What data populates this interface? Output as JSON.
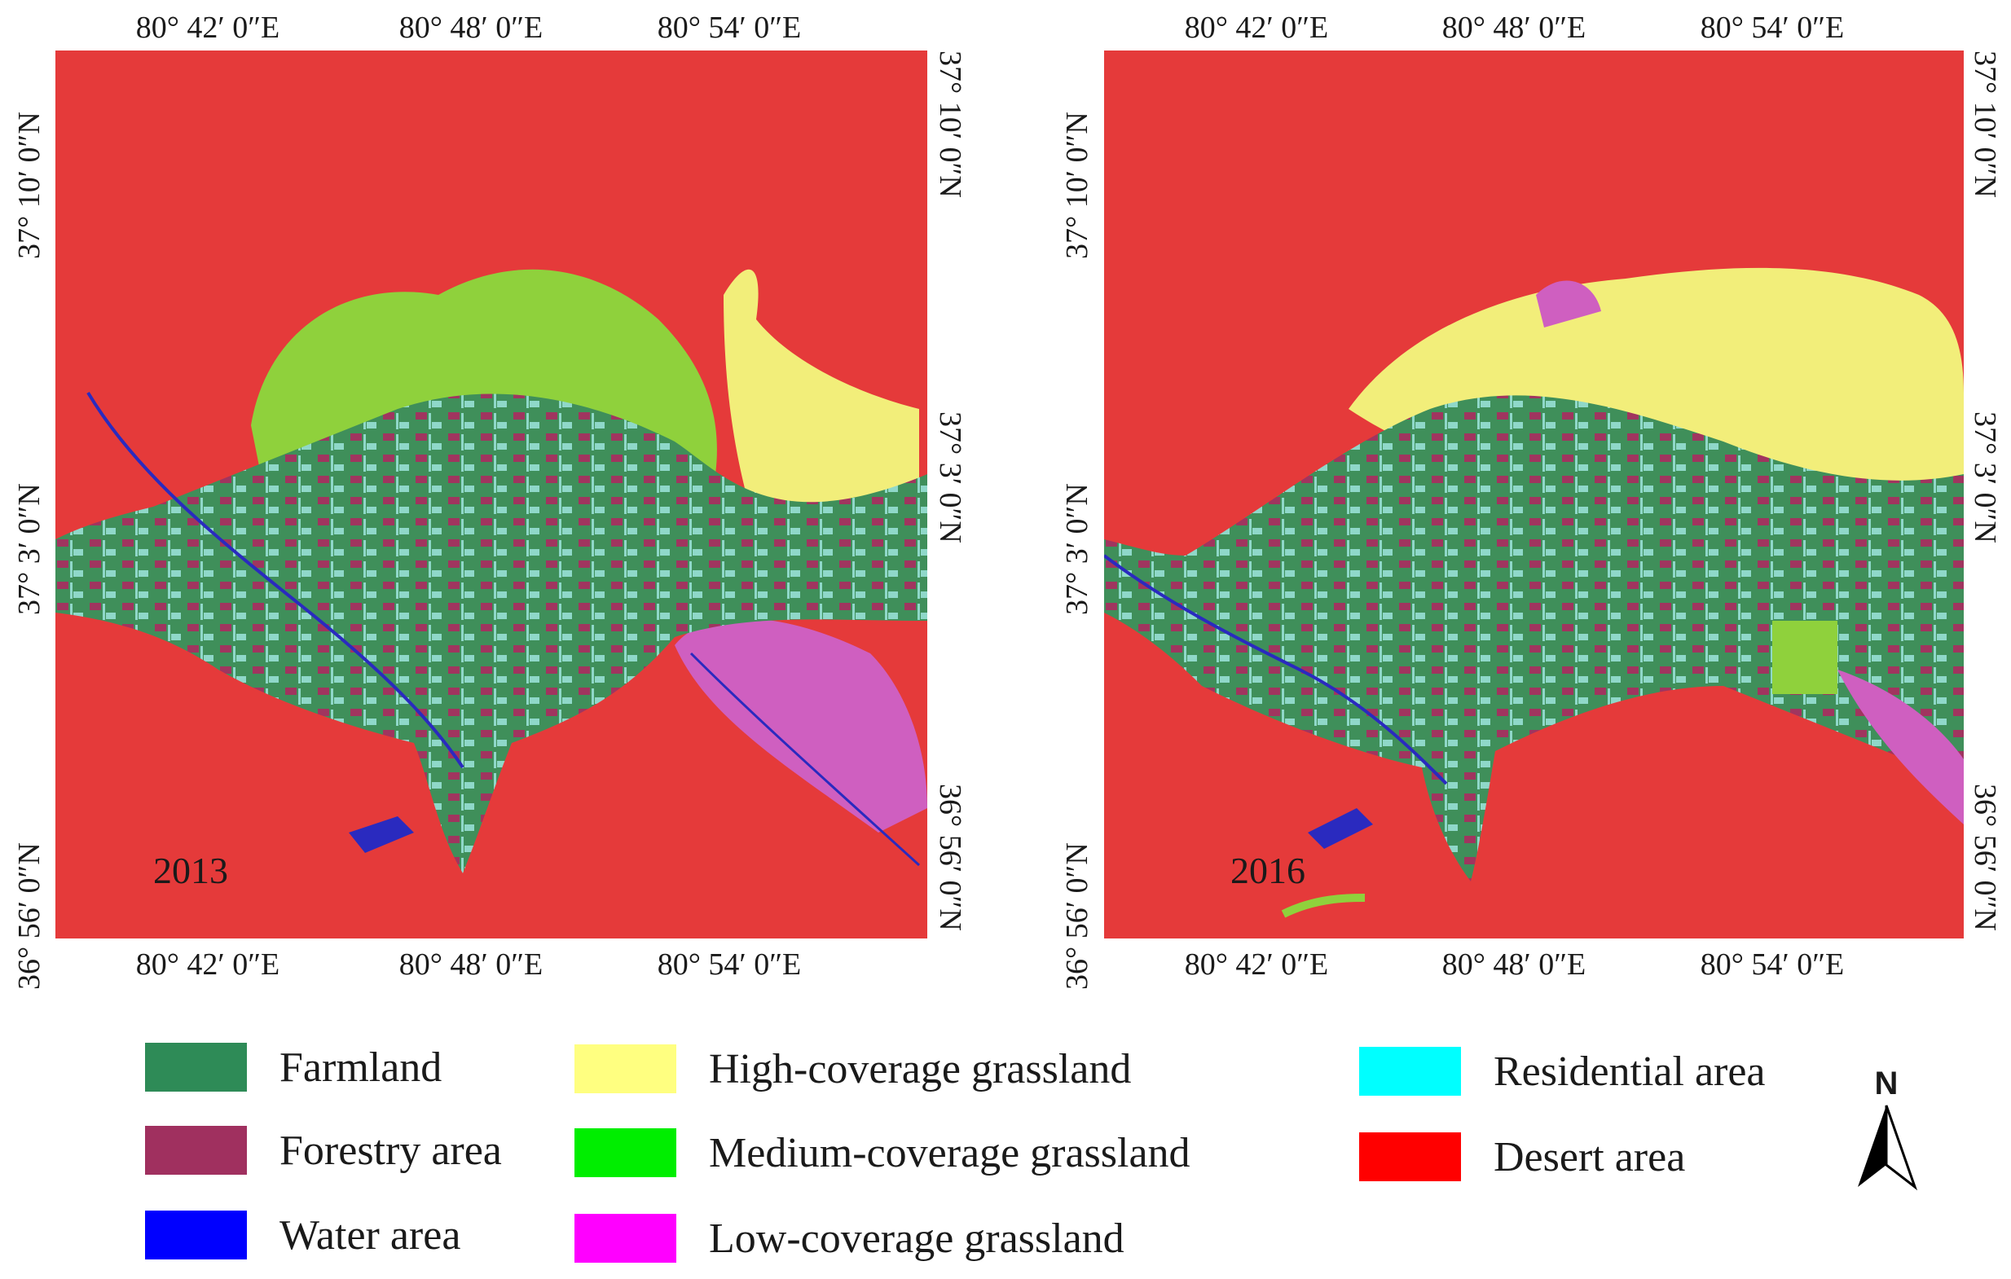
{
  "maps": [
    {
      "year": "2013",
      "lon_ticks": [
        "80°  42′ 0″E",
        "80°  48′ 0″E",
        "80°  54′ 0″E"
      ],
      "lat_ticks": [
        "37°  10′ 0″N",
        "37°  3′ 0″N",
        "36°  56′ 0″N"
      ]
    },
    {
      "year": "2016",
      "lon_ticks": [
        "80°  42′ 0″E",
        "80°  48′ 0″E",
        "80°  54′ 0″E"
      ],
      "lat_ticks": [
        "37°  10′ 0″N",
        "37°  3′ 0″N",
        "36°  56′ 0″N"
      ]
    }
  ],
  "legend": [
    {
      "label": "Farmland",
      "color": "#2e8b57"
    },
    {
      "label": "Forestry area",
      "color": "#a0305f"
    },
    {
      "label": "Water area",
      "color": "#0000ff"
    },
    {
      "label": "High-coverage grassland",
      "color": "#ffff80"
    },
    {
      "label": "Medium-coverage grassland",
      "color": "#00ee00"
    },
    {
      "label": "Low-coverage grassland",
      "color": "#ff00ff"
    },
    {
      "label": "Residential area",
      "color": "#00ffff"
    },
    {
      "label": "Desert area",
      "color": "#ff0000"
    }
  ],
  "map_colors": {
    "desert": "#e53a3a",
    "farmland": "#3f8f5a",
    "forestry": "#a0355f",
    "water": "#2a2abf",
    "high_grass": "#f2ee7a",
    "medium_grass": "#8fd13c",
    "low_grass": "#cf5fc0",
    "residential": "#8fd8c9"
  },
  "north_arrow": {
    "label": "N"
  }
}
